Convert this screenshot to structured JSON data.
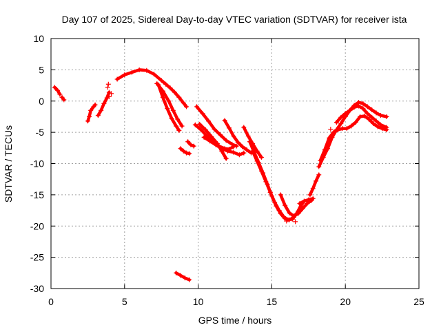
{
  "chart_data": {
    "type": "scatter",
    "title": "Day 107 of 2025, Sidereal Day-to-day VTEC variation (SDTVAR) for receiver ista",
    "xlabel": "GPS time / hours",
    "ylabel": "SDTVAR / TECUs",
    "xlim": [
      0,
      25
    ],
    "ylim": [
      -30,
      10
    ],
    "xticks": [
      0,
      5,
      10,
      15,
      20,
      25
    ],
    "yticks": [
      -30,
      -25,
      -20,
      -15,
      -10,
      -5,
      0,
      5,
      10
    ],
    "grid": true,
    "legend": "none",
    "marker": "+",
    "series_color": "#ff0000",
    "series": [
      {
        "name": "trace-early-1",
        "x": [
          0.25,
          0.45,
          0.6
        ],
        "y": [
          2.2,
          1.7,
          1.1
        ]
      },
      {
        "name": "trace-early-2",
        "x": [
          0.75,
          0.88
        ],
        "y": [
          0.6,
          0.2
        ]
      },
      {
        "name": "trace-early-3",
        "x": [
          2.5,
          2.6,
          2.7,
          2.9,
          3.0
        ],
        "y": [
          -3.2,
          -2.5,
          -1.5,
          -0.9,
          -0.6
        ]
      },
      {
        "name": "trace-early-4",
        "x": [
          3.2,
          3.4,
          3.6,
          3.8,
          3.95
        ],
        "y": [
          -2.3,
          -1.5,
          -0.4,
          0.5,
          1.4
        ]
      },
      {
        "name": "trace-main-upper",
        "x": [
          4.5,
          5.0,
          5.5,
          6.0,
          6.5,
          7.0,
          7.5,
          7.8,
          8.1,
          8.4,
          8.7,
          9.0,
          9.2
        ],
        "y": [
          3.5,
          4.2,
          4.6,
          5.0,
          4.9,
          4.3,
          3.3,
          2.7,
          2.1,
          1.4,
          0.6,
          -0.3,
          -0.9
        ]
      },
      {
        "name": "trace-main-mid",
        "x": [
          7.2,
          7.6,
          8.0,
          8.3,
          8.6,
          8.9
        ],
        "y": [
          2.8,
          1.6,
          0.0,
          -1.5,
          -2.9,
          -4.0
        ]
      },
      {
        "name": "trace-main-low",
        "x": [
          7.3,
          7.6,
          7.9,
          8.2,
          8.5,
          8.7
        ],
        "y": [
          2.6,
          0.6,
          -1.2,
          -2.8,
          -4.0,
          -4.7
        ]
      },
      {
        "name": "trace-mid-1",
        "x": [
          9.9,
          10.3,
          10.7,
          11.1,
          11.5,
          11.9,
          12.3,
          12.6
        ],
        "y": [
          -0.9,
          -2.0,
          -3.2,
          -4.5,
          -5.4,
          -6.3,
          -6.9,
          -7.2
        ]
      },
      {
        "name": "trace-mid-2",
        "x": [
          9.8,
          10.2,
          10.6,
          11.0,
          11.4,
          11.8,
          12.1,
          12.4
        ],
        "y": [
          -3.8,
          -4.6,
          -5.6,
          -6.4,
          -7.2,
          -7.6,
          -7.7,
          -7.3
        ]
      },
      {
        "name": "trace-mid-3",
        "x": [
          10.4,
          10.8,
          11.2,
          11.6,
          12.0,
          12.4,
          12.8,
          13.1
        ],
        "y": [
          -5.8,
          -6.4,
          -7.0,
          -7.6,
          -8.0,
          -8.2,
          -8.6,
          -8.3
        ]
      },
      {
        "name": "trace-mid-4",
        "x": [
          10.1,
          10.5,
          10.9,
          11.3,
          11.6,
          11.9
        ],
        "y": [
          -3.7,
          -4.6,
          -5.7,
          -6.8,
          -8.0,
          -9.2
        ]
      },
      {
        "name": "trace-small-1",
        "x": [
          9.3,
          9.5,
          9.7
        ],
        "y": [
          -6.5,
          -7.0,
          -7.2
        ]
      },
      {
        "name": "trace-small-2",
        "x": [
          8.8,
          9.0,
          9.2,
          9.4
        ],
        "y": [
          -7.6,
          -8.0,
          -8.3,
          -8.4
        ]
      },
      {
        "name": "trace-mid-5",
        "x": [
          11.8,
          12.1,
          12.4,
          12.7,
          13.0,
          13.3,
          13.6
        ],
        "y": [
          -3.1,
          -4.3,
          -5.6,
          -6.6,
          -7.3,
          -7.8,
          -8.3
        ]
      },
      {
        "name": "trace-mid-6",
        "x": [
          13.1,
          13.4,
          13.7,
          14.0,
          14.3
        ],
        "y": [
          -4.2,
          -5.6,
          -6.8,
          -8.0,
          -9.0
        ]
      },
      {
        "name": "trace-descent-1",
        "x": [
          13.5,
          13.8,
          14.1,
          14.4,
          14.7,
          15.0,
          15.3,
          15.6,
          15.9,
          16.2,
          16.5,
          16.8,
          17.1
        ],
        "y": [
          -6.5,
          -8.2,
          -9.8,
          -11.5,
          -13.3,
          -15.2,
          -16.8,
          -18.0,
          -18.8,
          -19.0,
          -18.6,
          -17.6,
          -16.3
        ]
      },
      {
        "name": "trace-descent-2",
        "x": [
          13.7,
          14.0,
          14.3,
          14.6,
          14.9,
          15.2,
          15.5,
          15.8,
          16.1,
          16.4,
          16.7,
          17.0
        ],
        "y": [
          -8.0,
          -9.6,
          -11.2,
          -12.9,
          -14.6,
          -16.2,
          -17.5,
          -18.5,
          -19.0,
          -18.9,
          -18.0,
          -16.6
        ]
      },
      {
        "name": "trace-bottom-a",
        "x": [
          15.6,
          15.9,
          16.2,
          16.5,
          16.8,
          17.1,
          17.4,
          17.7
        ],
        "y": [
          -15.0,
          -16.7,
          -17.9,
          -18.4,
          -18.0,
          -17.2,
          -16.4,
          -15.9
        ]
      },
      {
        "name": "trace-bottom-b",
        "x": [
          16.9,
          17.2,
          17.5,
          17.8
        ],
        "y": [
          -16.4,
          -16.0,
          -15.8,
          -15.6
        ]
      },
      {
        "name": "trace-rise-1",
        "x": [
          17.6,
          17.8,
          18.0,
          18.2
        ],
        "y": [
          -15.0,
          -14.0,
          -12.8,
          -11.8
        ]
      },
      {
        "name": "trace-rise-2",
        "x": [
          18.2,
          18.5,
          18.8,
          19.1,
          19.4,
          19.7,
          20.0,
          20.3,
          20.6,
          20.9,
          21.2,
          21.5,
          21.8,
          22.1,
          22.4,
          22.8
        ],
        "y": [
          -10.5,
          -9.0,
          -7.6,
          -5.8,
          -4.6,
          -3.6,
          -2.5,
          -1.5,
          -0.7,
          -0.2,
          -0.4,
          -0.9,
          -1.4,
          -1.9,
          -2.3,
          -2.5
        ]
      },
      {
        "name": "trace-rise-3",
        "x": [
          18.3,
          18.6,
          18.9,
          19.2,
          19.5,
          19.8,
          20.1,
          20.4,
          20.7,
          21.0,
          21.3,
          21.6,
          21.9,
          22.2,
          22.5,
          22.8
        ],
        "y": [
          -9.5,
          -7.8,
          -5.9,
          -5.0,
          -4.6,
          -4.4,
          -4.4,
          -4.0,
          -3.4,
          -2.5,
          -2.4,
          -2.9,
          -3.6,
          -4.1,
          -4.4,
          -4.6
        ]
      },
      {
        "name": "trace-rise-4",
        "x": [
          19.4,
          19.7,
          20.0,
          20.3,
          20.6,
          20.9,
          21.2,
          21.5,
          21.8,
          22.1,
          22.4,
          22.8
        ],
        "y": [
          -3.4,
          -2.6,
          -2.0,
          -1.5,
          -1.0,
          -0.8,
          -1.2,
          -2.0,
          -2.6,
          -3.2,
          -3.8,
          -4.2
        ]
      },
      {
        "name": "trace-outlier",
        "x": [
          8.5,
          8.8,
          9.1,
          9.4
        ],
        "y": [
          -27.5,
          -27.9,
          -28.3,
          -28.6
        ]
      }
    ],
    "scattered_markers": [
      {
        "x": 3.9,
        "y": 2.7
      },
      {
        "x": 3.85,
        "y": 2.2
      },
      {
        "x": 3.95,
        "y": 0.7
      },
      {
        "x": 4.1,
        "y": 1.2
      },
      {
        "x": 16.0,
        "y": -19.2
      },
      {
        "x": 16.6,
        "y": -19.3
      },
      {
        "x": 19.0,
        "y": -4.5
      },
      {
        "x": 14.9,
        "y": -14.6
      }
    ]
  }
}
